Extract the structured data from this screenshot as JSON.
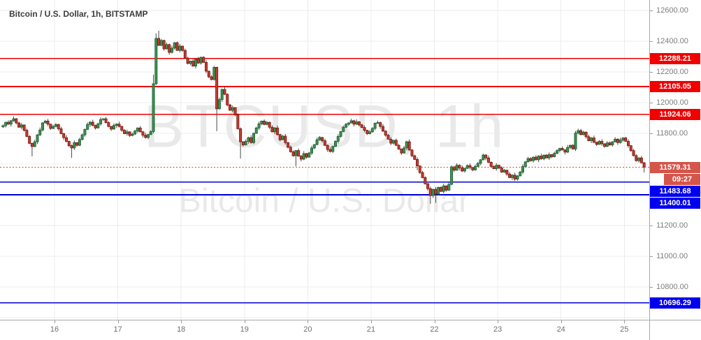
{
  "header": {
    "title": "Bitcoin / U.S. Dollar, 1h, BITSTAMP"
  },
  "watermark": {
    "line1": "BTCUSD, 1h",
    "line2": "Bitcoin / U.S. Dollar"
  },
  "axis": {
    "price_ticks": [
      12600,
      12400,
      12200,
      12000,
      11800,
      11200,
      11000,
      10800
    ],
    "grid_price_max": 12600,
    "grid_price_min": 10600,
    "grid_price_step": 200,
    "time_ticks": [
      "16",
      "17",
      "18",
      "19",
      "20",
      "21",
      "22",
      "23",
      "24",
      "25"
    ]
  },
  "levels": [
    {
      "price": 12288.21,
      "kind": "resistance"
    },
    {
      "price": 12105.05,
      "kind": "resistance"
    },
    {
      "price": 11924.06,
      "kind": "resistance"
    },
    {
      "price": 11483.68,
      "kind": "support"
    },
    {
      "price": 11400.01,
      "kind": "support"
    },
    {
      "price": 10696.29,
      "kind": "support"
    }
  ],
  "current": {
    "price": 11579.31,
    "label": "11579.31",
    "countdown": "09:27"
  },
  "colors": {
    "resistance_line": "#f20000",
    "resistance_badge": "#f20000",
    "support_line": "#0000d8",
    "support_badge": "#0000f0",
    "current_badge": "#d4554a",
    "current_dotted_line": "#e04030",
    "candle_up_fill": "#3d9150",
    "candle_up_border": "#1d5e33",
    "candle_down_fill": "#c03d31",
    "candle_down_border": "#7c150c",
    "wick": "#4a4a4a",
    "grid": "#ececec"
  },
  "chart_data": {
    "type": "candlestick",
    "symbol": "BTCUSD",
    "exchange": "BITSTAMP",
    "interval": "1h",
    "title": "Bitcoin / U.S. Dollar, 1h, BITSTAMP",
    "grid": true,
    "legend_position": "none",
    "x_axis_days": [
      16,
      17,
      18,
      19,
      20,
      21,
      22,
      23,
      24,
      25
    ],
    "xlim_days": [
      15.139,
      25.394
    ],
    "ylim": [
      10586.4,
      12668.2
    ],
    "start_day": 15,
    "start_hour": 4,
    "open_first": 11842,
    "closes_by_day": {
      "15": [
        11850,
        11872,
        11860,
        11882,
        11895,
        11868,
        11840,
        11855,
        11820,
        11780,
        11735,
        11714,
        11745,
        11790,
        11822,
        11868,
        11880,
        11860,
        11832,
        11845
      ],
      "16": [
        11858,
        11830,
        11798,
        11772,
        11748,
        11720,
        11705,
        11740,
        11722,
        11760,
        11790,
        11826,
        11858,
        11873,
        11852,
        11835,
        11862,
        11890,
        11895,
        11870,
        11845,
        11828,
        11852,
        11860
      ],
      "17": [
        11845,
        11820,
        11798,
        11810,
        11786,
        11795,
        11815,
        11835,
        11810,
        11788,
        11773,
        11792,
        11812,
        12123,
        12418,
        12373,
        12405,
        12350,
        12378,
        12327,
        12355,
        12390,
        12340,
        12368
      ],
      "18": [
        12340,
        12290,
        12255,
        12270,
        12238,
        12282,
        12258,
        12295,
        12262,
        12205,
        12168,
        12150,
        12230,
        11960,
        12020,
        12086,
        12055,
        11985,
        11950,
        11968,
        11920,
        11830,
        11745,
        11725
      ],
      "19": [
        11748,
        11772,
        11740,
        11800,
        11835,
        11862,
        11880,
        11858,
        11872,
        11840,
        11810,
        11835,
        11792,
        11758,
        11782,
        11740,
        11710,
        11680,
        11654,
        11688,
        11652,
        11632,
        11668,
        11645
      ],
      "20": [
        11672,
        11705,
        11727,
        11758,
        11773,
        11752,
        11722,
        11695,
        11682,
        11715,
        11748,
        11780,
        11812,
        11840,
        11859,
        11868,
        11882,
        11860,
        11875,
        11855,
        11838,
        11820,
        11798,
        11810
      ],
      "21": [
        11832,
        11866,
        11870,
        11845,
        11815,
        11788,
        11762,
        11736,
        11755,
        11722,
        11698,
        11672,
        11705,
        11745,
        11692,
        11654,
        11630,
        11588,
        11545,
        11512,
        11472,
        11440,
        11395,
        11435
      ],
      "22": [
        11405,
        11448,
        11422,
        11458,
        11430,
        11468,
        11582,
        11560,
        11592,
        11575,
        11555,
        11572,
        11590,
        11578,
        11562,
        11585,
        11605,
        11628,
        11659,
        11640,
        11612,
        11585,
        11570,
        11592
      ],
      "23": [
        11575,
        11548,
        11560,
        11535,
        11512,
        11528,
        11502,
        11523,
        11548,
        11585,
        11615,
        11636,
        11622,
        11645,
        11628,
        11652,
        11635,
        11658,
        11640,
        11662,
        11648,
        11670,
        11688,
        11702
      ],
      "24": [
        11692,
        11678,
        11708,
        11722,
        11698,
        11802,
        11818,
        11792,
        11808,
        11778,
        11752,
        11770,
        11742,
        11728,
        11748,
        11732,
        11715,
        11738,
        11725,
        11745,
        11762,
        11740,
        11756,
        11770
      ],
      "25": [
        11748,
        11720,
        11688,
        11655,
        11622,
        11640,
        11608,
        11579.31
      ]
    },
    "wick_up_pattern": [
      9,
      4,
      13,
      6,
      16,
      5,
      8,
      14,
      3,
      11
    ],
    "wick_dn_pattern": [
      6,
      12,
      4,
      15,
      7,
      10,
      3,
      13,
      9,
      5
    ],
    "wick_overrides": [
      {
        "i": 11,
        "low": 11650
      },
      {
        "i": 26,
        "low": 11640
      },
      {
        "i": 57,
        "high": 12182
      },
      {
        "i": 58,
        "high": 12450
      },
      {
        "i": 59,
        "high": 12468
      },
      {
        "i": 81,
        "low": 11814
      },
      {
        "i": 90,
        "low": 11636
      },
      {
        "i": 111,
        "low": 11586
      },
      {
        "i": 157,
        "low": 11560
      },
      {
        "i": 162,
        "low": 11341
      },
      {
        "i": 164,
        "low": 11348
      },
      {
        "i": 182,
        "high": 11668
      },
      {
        "i": 194,
        "low": 11490
      },
      {
        "i": 218,
        "high": 11830
      },
      {
        "i": 243,
        "low": 11545
      }
    ],
    "horizontal_levels": {
      "resistance": [
        12288.21,
        12105.05,
        11924.06
      ],
      "support": [
        11483.68,
        11400.01,
        10696.29
      ],
      "current_price": 11579.31
    }
  }
}
